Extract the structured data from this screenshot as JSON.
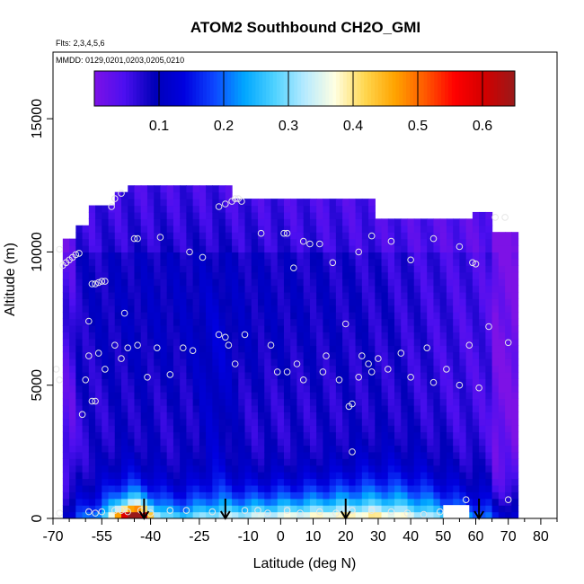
{
  "chart_data": {
    "type": "heatmap",
    "title": "ATOM2 Southbound CH2O_GMI",
    "subtitle_flights": "Flts: 2,3,4,5,6",
    "subtitle_dates": "MMDD: 0129,0201,0203,0205,0210",
    "xlabel": "Latitude (deg N)",
    "ylabel": "Altitude (m)",
    "xlim": [
      -70,
      85
    ],
    "ylim": [
      0,
      17500
    ],
    "x_ticks": [
      -70,
      -55,
      -40,
      -25,
      -10,
      0,
      10,
      20,
      30,
      40,
      50,
      60,
      70,
      80
    ],
    "x_minor_ticks": [
      -65,
      -60,
      -50,
      -45,
      -35,
      -30,
      -20,
      -15,
      -5,
      5,
      15,
      25,
      35,
      45,
      55,
      65,
      75,
      85
    ],
    "y_ticks": [
      0,
      5000,
      10000,
      15000
    ],
    "colorbar": {
      "min": 0.0,
      "max": 0.65,
      "tick_values": [
        0.1,
        0.2,
        0.3,
        0.4,
        0.5,
        0.6
      ],
      "tick_labels": [
        "0.1",
        "0.2",
        "0.3",
        "0.4",
        "0.5",
        "0.6"
      ],
      "colors": [
        "#7d12e6",
        "#4c0ff0",
        "#0000b8",
        "#0000e0",
        "#0d47ff",
        "#00a7ff",
        "#4fd2ff",
        "#b6eaff",
        "#ffffe2",
        "#ffd750",
        "#ffa400",
        "#ff5a00",
        "#ff0000",
        "#d20000",
        "#9a1a1a"
      ]
    },
    "curtain": {
      "lat_min": -67,
      "lat_max": 72,
      "lat_step": 2,
      "alt_step": 250
    },
    "arrows_lat": [
      -42,
      -17,
      20,
      61
    ],
    "points": [
      [
        -68,
        10100
      ],
      [
        -67,
        9500
      ],
      [
        -66,
        9600
      ],
      [
        -65,
        9700
      ],
      [
        -64,
        9800
      ],
      [
        -63,
        9900
      ],
      [
        -62,
        9950
      ],
      [
        -58,
        8800
      ],
      [
        -57,
        8800
      ],
      [
        -56,
        8850
      ],
      [
        -55,
        8900
      ],
      [
        -54,
        8900
      ],
      [
        -48,
        7700
      ],
      [
        -52,
        11700
      ],
      [
        -51,
        12000
      ],
      [
        -49,
        12200
      ],
      [
        -45,
        10500
      ],
      [
        -44,
        10500
      ],
      [
        -37,
        10550
      ],
      [
        -28,
        10000
      ],
      [
        -24,
        9800
      ],
      [
        -19,
        11700
      ],
      [
        -17,
        11800
      ],
      [
        -15,
        11900
      ],
      [
        -14,
        12000
      ],
      [
        -13,
        12000
      ],
      [
        -12,
        11900
      ],
      [
        -6,
        10700
      ],
      [
        1,
        10700
      ],
      [
        2,
        10700
      ],
      [
        4,
        9400
      ],
      [
        7,
        10400
      ],
      [
        9,
        10300
      ],
      [
        12,
        10300
      ],
      [
        16,
        9600
      ],
      [
        24,
        10000
      ],
      [
        28,
        10600
      ],
      [
        34,
        10400
      ],
      [
        40,
        9700
      ],
      [
        47,
        10500
      ],
      [
        55,
        10200
      ],
      [
        59,
        9600
      ],
      [
        60,
        9550
      ],
      [
        66,
        11300
      ],
      [
        69,
        11300
      ],
      [
        -69,
        5600
      ],
      [
        -68,
        5200
      ],
      [
        -59,
        7400
      ],
      [
        -59,
        6100
      ],
      [
        -57,
        4400
      ],
      [
        -56,
        6200
      ],
      [
        -54,
        5600
      ],
      [
        -51,
        6500
      ],
      [
        -49,
        6000
      ],
      [
        -47,
        6400
      ],
      [
        -44,
        6500
      ],
      [
        -41,
        5300
      ],
      [
        -38,
        6400
      ],
      [
        -34,
        5400
      ],
      [
        -30,
        6400
      ],
      [
        -27,
        6300
      ],
      [
        -19,
        6900
      ],
      [
        -17,
        6800
      ],
      [
        -16,
        6500
      ],
      [
        -14,
        5800
      ],
      [
        -11,
        6900
      ],
      [
        -3,
        6500
      ],
      [
        -1,
        5500
      ],
      [
        2,
        5500
      ],
      [
        5,
        5800
      ],
      [
        7,
        5200
      ],
      [
        13,
        5500
      ],
      [
        14,
        6100
      ],
      [
        18,
        5200
      ],
      [
        20,
        7300
      ],
      [
        22,
        4300
      ],
      [
        24,
        5300
      ],
      [
        25,
        6100
      ],
      [
        27,
        5800
      ],
      [
        28,
        5500
      ],
      [
        30,
        6000
      ],
      [
        33,
        5600
      ],
      [
        37,
        6200
      ],
      [
        40,
        5300
      ],
      [
        45,
        6400
      ],
      [
        47,
        5100
      ],
      [
        51,
        5600
      ],
      [
        55,
        5000
      ],
      [
        58,
        6500
      ],
      [
        61,
        4900
      ],
      [
        64,
        7200
      ],
      [
        70,
        6600
      ],
      [
        -61,
        3900
      ],
      [
        -60,
        5200
      ],
      [
        -58,
        4400
      ],
      [
        21,
        4200
      ],
      [
        22,
        2500
      ],
      [
        -68,
        200
      ],
      [
        -59,
        250
      ],
      [
        -57,
        200
      ],
      [
        -55,
        250
      ],
      [
        -51,
        300
      ],
      [
        -49,
        300
      ],
      [
        -47,
        250
      ],
      [
        -43,
        300
      ],
      [
        -40,
        200
      ],
      [
        -34,
        300
      ],
      [
        -29,
        300
      ],
      [
        -21,
        250
      ],
      [
        -11,
        300
      ],
      [
        -7,
        300
      ],
      [
        -4,
        200
      ],
      [
        2,
        300
      ],
      [
        6,
        200
      ],
      [
        12,
        250
      ],
      [
        17,
        200
      ],
      [
        22,
        300
      ],
      [
        28,
        300
      ],
      [
        34,
        250
      ],
      [
        39,
        200
      ],
      [
        44,
        150
      ],
      [
        49,
        250
      ],
      [
        57,
        700
      ],
      [
        70,
        700
      ]
    ]
  }
}
